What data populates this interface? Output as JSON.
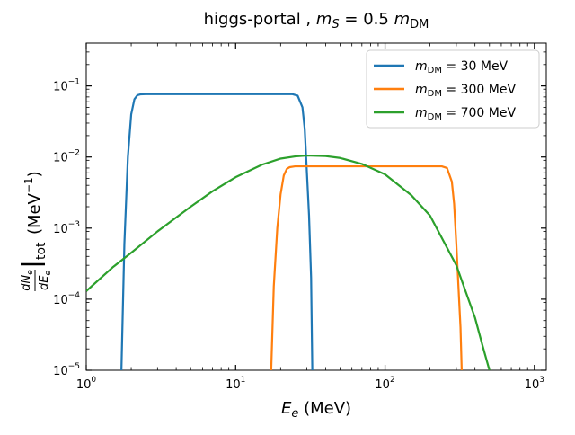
{
  "chart_data": {
    "type": "line",
    "title": "higgs-portal ,  m_S = 0.5 m_DM",
    "title_parts": {
      "prefix": "higgs-portal ,  ",
      "m": "m",
      "s_sub": "S",
      "eq": " = 0.5 ",
      "m2": "m",
      "dm_sub": "DM"
    },
    "xlabel": {
      "var": "E",
      "sub": "e",
      "unit": " (MeV)"
    },
    "ylabel": {
      "num": "dN",
      "num_sub": "e",
      "den": "dE",
      "den_sub": "e",
      "tot": "tot",
      "unit_open": "(MeV",
      "unit_exp": "−1",
      "unit_close": ")"
    },
    "xscale": "log",
    "yscale": "log",
    "xlim": [
      1,
      1200
    ],
    "ylim": [
      1e-05,
      0.4
    ],
    "x_ticks": [
      {
        "base": "10",
        "exp": "0",
        "value": 1
      },
      {
        "base": "10",
        "exp": "1",
        "value": 10
      },
      {
        "base": "10",
        "exp": "2",
        "value": 100
      },
      {
        "base": "10",
        "exp": "3",
        "value": 1000
      }
    ],
    "y_ticks": [
      {
        "base": "10",
        "exp": "−5",
        "value": 1e-05
      },
      {
        "base": "10",
        "exp": "−4",
        "value": 0.0001
      },
      {
        "base": "10",
        "exp": "−3",
        "value": 0.001
      },
      {
        "base": "10",
        "exp": "−2",
        "value": 0.01
      },
      {
        "base": "10",
        "exp": "−1",
        "value": 0.1
      }
    ],
    "legend_position": "top-right",
    "series": [
      {
        "name": "m_DM = 30 MeV",
        "legend": {
          "m": "m",
          "sub": "DM",
          "rest": " = 30 MeV"
        },
        "color": "#1f77b4",
        "x": [
          1.72,
          1.8,
          1.9,
          2.0,
          2.1,
          2.2,
          2.3,
          2.5,
          5,
          10,
          20,
          24,
          26,
          28,
          29,
          30,
          31,
          32,
          32.6
        ],
        "y": [
          1e-05,
          0.0006,
          0.01,
          0.04,
          0.065,
          0.074,
          0.076,
          0.0765,
          0.0765,
          0.0765,
          0.0765,
          0.0765,
          0.073,
          0.05,
          0.025,
          0.006,
          0.0015,
          0.0002,
          1e-05
        ]
      },
      {
        "name": "m_DM = 300 MeV",
        "legend": {
          "m": "m",
          "sub": "DM",
          "rest": " = 300 MeV"
        },
        "color": "#ff7f0e",
        "x": [
          17.3,
          18.0,
          19.0,
          20.0,
          21.0,
          22.0,
          23.0,
          25.0,
          50,
          100,
          200,
          240,
          260,
          280,
          290,
          300,
          310,
          320,
          326
        ],
        "y": [
          1e-05,
          0.00015,
          0.001,
          0.003,
          0.0055,
          0.0068,
          0.0072,
          0.0074,
          0.0074,
          0.0074,
          0.0074,
          0.0074,
          0.007,
          0.0045,
          0.0022,
          0.0006,
          0.00015,
          4e-05,
          1e-05
        ]
      },
      {
        "name": "m_DM = 700 MeV",
        "legend": {
          "m": "m",
          "sub": "DM",
          "rest": " = 700 MeV"
        },
        "color": "#2ca02c",
        "x": [
          1,
          1.5,
          2,
          3,
          5,
          7,
          10,
          15,
          20,
          25,
          30,
          40,
          50,
          70,
          100,
          150,
          200,
          300,
          400,
          450,
          500
        ],
        "y": [
          0.00013,
          0.00028,
          0.00045,
          0.0009,
          0.002,
          0.0033,
          0.0052,
          0.0078,
          0.0095,
          0.0102,
          0.0105,
          0.0103,
          0.0097,
          0.008,
          0.0057,
          0.0029,
          0.0015,
          0.0003,
          5.5e-05,
          2.2e-05,
          1e-05
        ]
      }
    ]
  }
}
